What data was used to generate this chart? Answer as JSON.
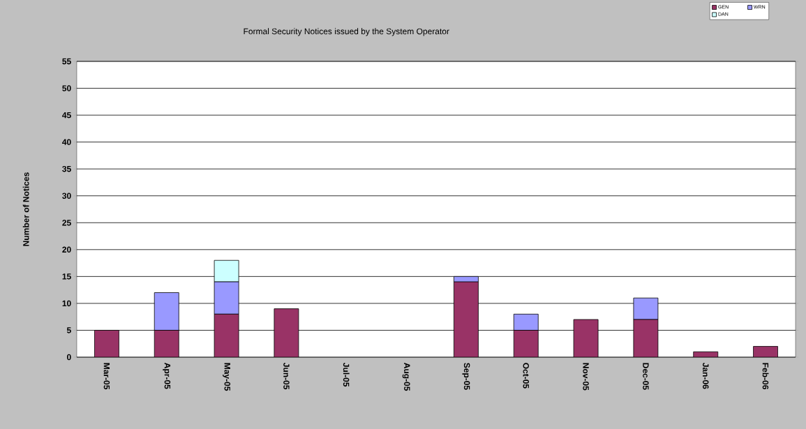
{
  "chart_data": {
    "type": "bar",
    "title": "Formal Security Notices issued by the System Operator",
    "ylabel": "Number of Notices",
    "categories": [
      "Mar-05",
      "Apr-05",
      "May-05",
      "Jun-05",
      "Jul-05",
      "Aug-05",
      "Sep-05",
      "Oct-05",
      "Nov-05",
      "Dec-05",
      "Jan-06",
      "Feb-06"
    ],
    "stacked": true,
    "series": [
      {
        "name": "GEN",
        "color": "#993366",
        "values": [
          5,
          5,
          8,
          9,
          0,
          0,
          14,
          5,
          7,
          7,
          1,
          2
        ]
      },
      {
        "name": "WRN",
        "color": "#9999ff",
        "values": [
          0,
          7,
          6,
          0,
          0,
          0,
          1,
          3,
          0,
          4,
          0,
          0
        ]
      },
      {
        "name": "DAN",
        "color": "#ccffff",
        "values": [
          0,
          0,
          4,
          0,
          0,
          0,
          0,
          0,
          0,
          0,
          0,
          0
        ]
      }
    ],
    "ylim": [
      0,
      55
    ],
    "yticks": [
      0,
      5,
      10,
      15,
      20,
      25,
      30,
      35,
      40,
      45,
      50,
      55
    ],
    "grid": "y",
    "legend": "top right"
  }
}
